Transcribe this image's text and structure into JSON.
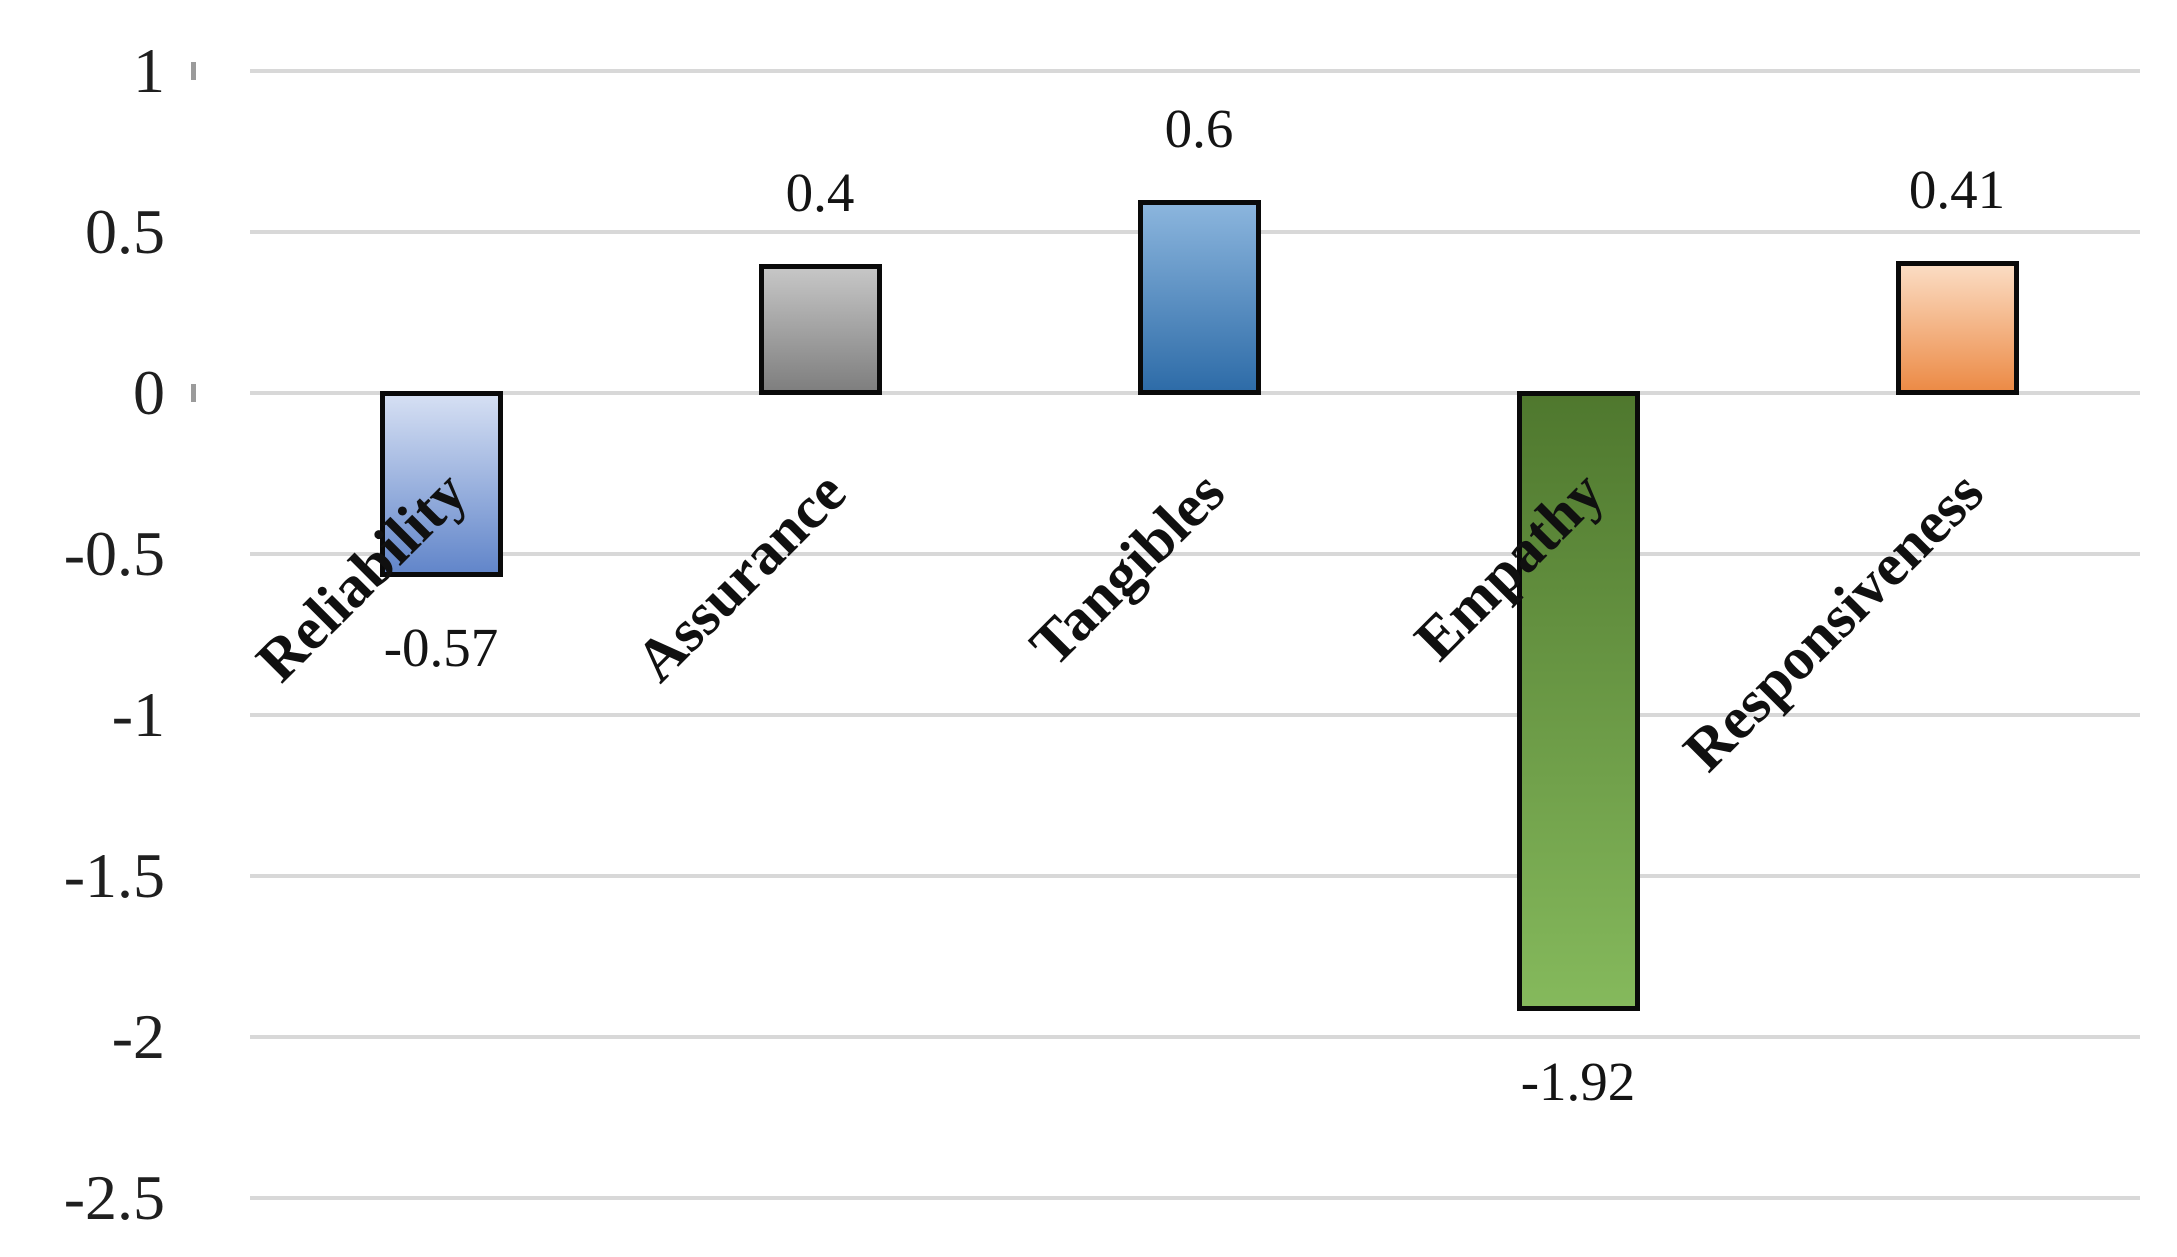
{
  "chart_data": {
    "type": "bar",
    "title": "",
    "xlabel": "",
    "ylabel": "",
    "categories": [
      "Reliability",
      "Assurance",
      "Tangibles",
      "Empathy",
      "Responsiveness"
    ],
    "values": [
      -0.57,
      0.4,
      0.6,
      -1.92,
      0.41
    ],
    "data_labels": [
      "-0.57",
      "0.4",
      "0.6",
      "-1.92",
      "0.41"
    ],
    "y_axis": {
      "min": -2.5,
      "max": 1,
      "tick_labels": [
        "1",
        "0.5",
        "0",
        "-0.5",
        "-1",
        "-1.5",
        "-2",
        "-2.5"
      ],
      "tick_values": [
        1,
        0.5,
        0,
        -0.5,
        -1,
        -1.5,
        -2,
        -2.5
      ],
      "axis_tick_marks_at": [
        1,
        0
      ]
    },
    "grid": true,
    "legend": false,
    "bar_styles": [
      {
        "category": "Reliability",
        "gradient_top": "#d5dff3",
        "gradient_bottom": "#6286ca",
        "border": "#0a0a0a"
      },
      {
        "category": "Assurance",
        "gradient_top": "#c6c6c6",
        "gradient_bottom": "#7f7f7f",
        "border": "#0a0a0a"
      },
      {
        "category": "Tangibles",
        "gradient_top": "#8bb5dd",
        "gradient_bottom": "#2e6ca8",
        "border": "#0a0a0a"
      },
      {
        "category": "Empathy",
        "gradient_top": "#4f782e",
        "gradient_bottom": "#85b95c",
        "border": "#0a0a0a"
      },
      {
        "category": "Responsiveness",
        "gradient_top": "#fbdcc3",
        "gradient_bottom": "#ec8b47",
        "border": "#0a0a0a"
      }
    ],
    "gridline_color": "#d8d8d8"
  }
}
